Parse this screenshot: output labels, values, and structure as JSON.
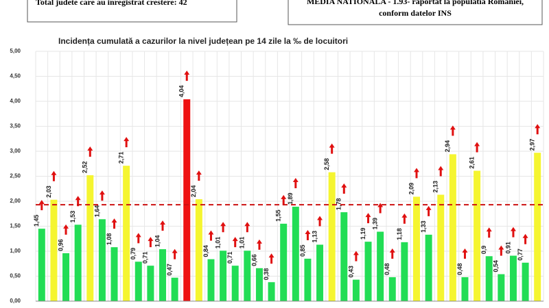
{
  "header": {
    "left_box": "Total judete care au inregistrat crestere: 42",
    "right_box_line1": "MEDIA NATIONALA - 1.93-  raportat la populatia Romaniei,",
    "right_box_line2": "conform datelor INS"
  },
  "chart_data": {
    "type": "bar",
    "title": "Incidența cumulată a cazurilor la nivel județean pe 14 zile la ‰ de locuitori",
    "categories": [
      null,
      null,
      null,
      null,
      null,
      null,
      null,
      null,
      null,
      null,
      null,
      null,
      null,
      null,
      null,
      null,
      null,
      null,
      null,
      null,
      null,
      null,
      null,
      null,
      null,
      null,
      null,
      null,
      null,
      null,
      null,
      null,
      null,
      null,
      null,
      null,
      null,
      null,
      null,
      null,
      null,
      null
    ],
    "values": [
      1.45,
      2.03,
      0.96,
      1.53,
      2.52,
      1.64,
      1.08,
      2.71,
      0.79,
      0.71,
      1.04,
      0.47,
      4.04,
      2.04,
      0.84,
      1.01,
      0.71,
      1.01,
      0.66,
      0.38,
      1.55,
      1.89,
      0.85,
      1.13,
      2.58,
      1.78,
      0.43,
      1.19,
      1.39,
      0.48,
      1.18,
      2.09,
      1.33,
      2.13,
      2.94,
      0.48,
      2.61,
      0.9,
      0.54,
      0.91,
      0.77,
      2.97
    ],
    "value_labels": [
      "1,45",
      "2,03",
      "0,96",
      "1,53",
      "2,52",
      "1,64",
      "1,08",
      "2,71",
      "0,79",
      "0,71",
      "1,04",
      "0,47",
      "4,04",
      "2,04",
      "0,84",
      "1,01",
      "0,71",
      "1,01",
      "0,66",
      "0,38",
      "1,55",
      "1,89",
      "0,85",
      "1,13",
      "2,58",
      "1,78",
      "0,43",
      "1,19",
      "1,39",
      "0,48",
      "1,18",
      "2,09",
      "1,33",
      "2,13",
      "2,94",
      "0,48",
      "2,61",
      "0,9",
      "0,54",
      "0,91",
      "0,77",
      "2,97"
    ],
    "colors": [
      "#22dd55",
      "#f5f530",
      "#22dd55",
      "#22dd55",
      "#f5f530",
      "#22dd55",
      "#22dd55",
      "#f5f530",
      "#22dd55",
      "#22dd55",
      "#22dd55",
      "#22dd55",
      "#ee1111",
      "#f5f530",
      "#22dd55",
      "#22dd55",
      "#22dd55",
      "#22dd55",
      "#22dd55",
      "#22dd55",
      "#22dd55",
      "#22dd55",
      "#22dd55",
      "#22dd55",
      "#f5f530",
      "#22dd55",
      "#22dd55",
      "#22dd55",
      "#22dd55",
      "#22dd55",
      "#22dd55",
      "#f5f530",
      "#22dd55",
      "#f5f530",
      "#f5f530",
      "#22dd55",
      "#f5f530",
      "#22dd55",
      "#22dd55",
      "#22dd55",
      "#22dd55",
      "#f5f530"
    ],
    "reference_line": 1.93,
    "reference_color": "#cc1111",
    "ylim": [
      0,
      5
    ],
    "yticks": [
      {
        "value": 0,
        "label": "0,00"
      },
      {
        "value": 0.5,
        "label": "0,50"
      },
      {
        "value": 1,
        "label": "1,00"
      },
      {
        "value": 1.5,
        "label": "1,50"
      },
      {
        "value": 2,
        "label": "2,00"
      },
      {
        "value": 2.5,
        "label": "2,50"
      },
      {
        "value": 3,
        "label": "3,00"
      },
      {
        "value": 3.5,
        "label": "3,50"
      },
      {
        "value": 4,
        "label": "4,00"
      },
      {
        "value": 4.5,
        "label": "4,50"
      },
      {
        "value": 5,
        "label": "5,00"
      }
    ],
    "grid": true
  }
}
